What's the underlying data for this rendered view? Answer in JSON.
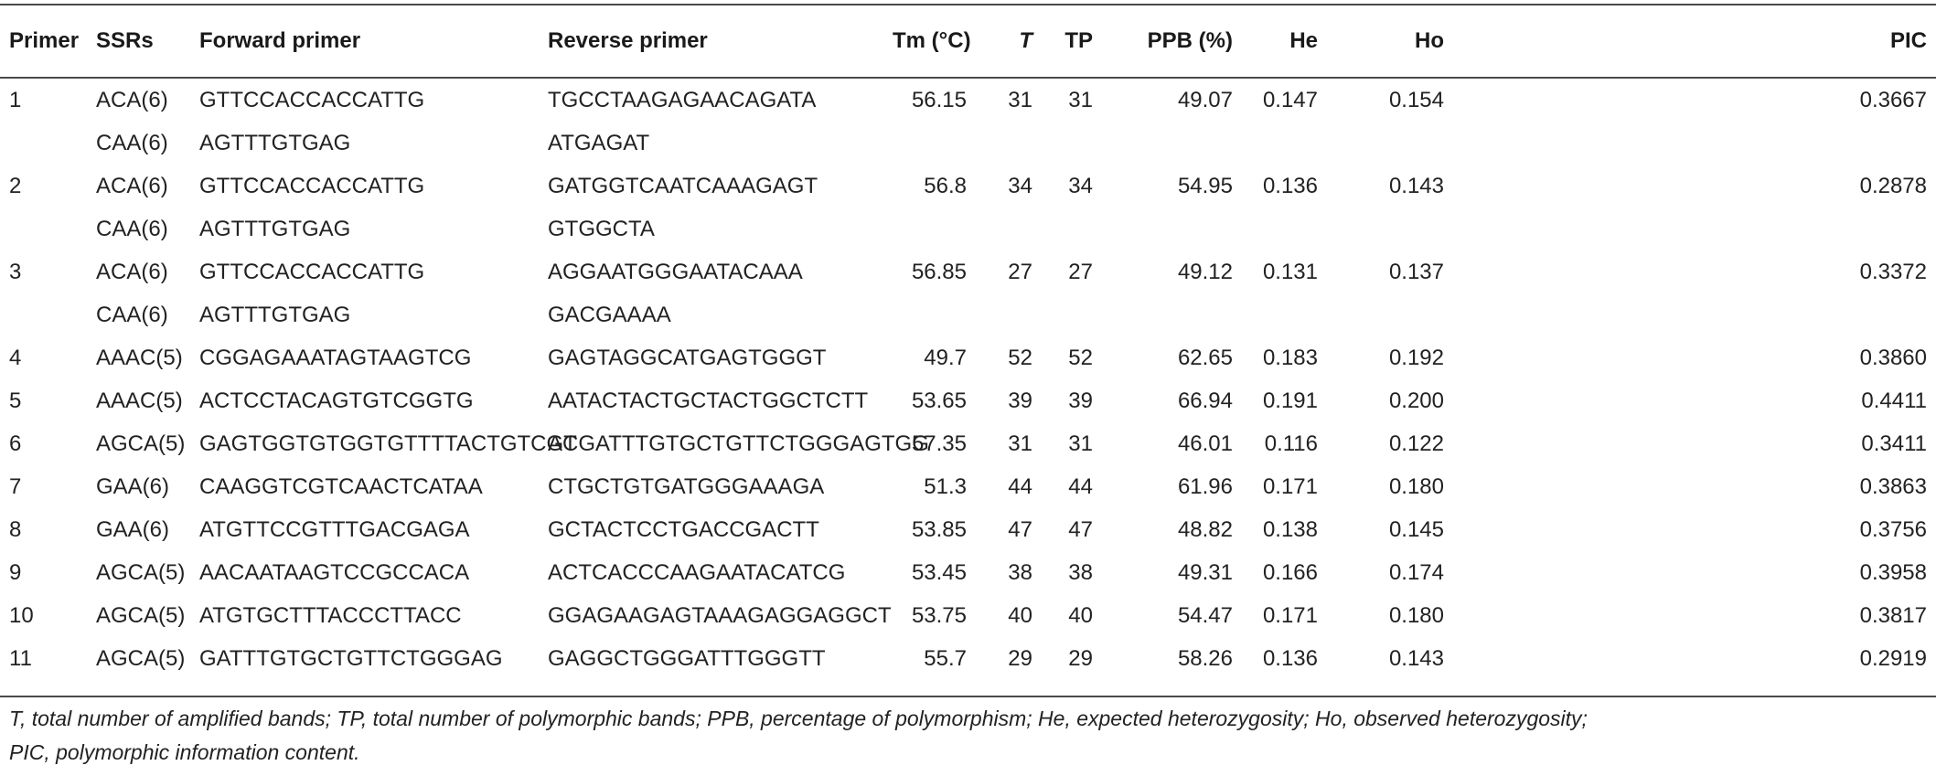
{
  "table": {
    "headers": {
      "primer": "Primer",
      "ssrs": "SSRs",
      "forward": "Forward primer",
      "reverse": "Reverse primer",
      "tm": "Tm (°C)",
      "t": "T",
      "tp": "TP",
      "ppb": "PPB (%)",
      "he": "He",
      "ho": "Ho",
      "pic": "PIC"
    },
    "rows": [
      {
        "primer": "1",
        "ssrs": "ACA(6)",
        "forward": "GTTCCACCACCATTG",
        "reverse": "TGCCTAAGAGAACAGATA",
        "tm": "56.15",
        "t": "31",
        "tp": "31",
        "ppb": "49.07",
        "he": "0.147",
        "ho": "0.154",
        "pic": "0.3667"
      },
      {
        "primer": "",
        "ssrs": "CAA(6)",
        "forward": "AGTTTGTGAG",
        "reverse": "ATGAGAT",
        "tm": "",
        "t": "",
        "tp": "",
        "ppb": "",
        "he": "",
        "ho": "",
        "pic": ""
      },
      {
        "primer": "2",
        "ssrs": "ACA(6)",
        "forward": "GTTCCACCACCATTG",
        "reverse": "GATGGTCAATCAAAGAGT",
        "tm": "56.8",
        "t": "34",
        "tp": "34",
        "ppb": "54.95",
        "he": "0.136",
        "ho": "0.143",
        "pic": "0.2878"
      },
      {
        "primer": "",
        "ssrs": "CAA(6)",
        "forward": "AGTTTGTGAG",
        "reverse": "GTGGCTA",
        "tm": "",
        "t": "",
        "tp": "",
        "ppb": "",
        "he": "",
        "ho": "",
        "pic": ""
      },
      {
        "primer": "3",
        "ssrs": "ACA(6)",
        "forward": "GTTCCACCACCATTG",
        "reverse": "AGGAATGGGAATACAAA",
        "tm": "56.85",
        "t": "27",
        "tp": "27",
        "ppb": "49.12",
        "he": "0.131",
        "ho": "0.137",
        "pic": "0.3372"
      },
      {
        "primer": "",
        "ssrs": "CAA(6)",
        "forward": "AGTTTGTGAG",
        "reverse": "GACGAAAA",
        "tm": "",
        "t": "",
        "tp": "",
        "ppb": "",
        "he": "",
        "ho": "",
        "pic": ""
      },
      {
        "primer": "4",
        "ssrs": "AAAC(5)",
        "forward": "CGGAGAAATAGTAAGTCG",
        "reverse": "GAGTAGGCATGAGTGGGT",
        "tm": "49.7",
        "t": "52",
        "tp": "52",
        "ppb": "62.65",
        "he": "0.183",
        "ho": "0.192",
        "pic": "0.3860"
      },
      {
        "primer": "5",
        "ssrs": "AAAC(5)",
        "forward": "ACTCCTACAGTGTCGGTG",
        "reverse": "AATACTACTGCTACTGGCTCTT",
        "tm": "53.65",
        "t": "39",
        "tp": "39",
        "ppb": "66.94",
        "he": "0.191",
        "ho": "0.200",
        "pic": "0.4411"
      },
      {
        "primer": "6",
        "ssrs": "AGCA(5)",
        "forward": "GAGTGGTGTGGTGTTTTACTGTCGT",
        "reverse": "ACGATTTGTGCTGTTCTGGGAGTGG",
        "tm": "57.35",
        "t": "31",
        "tp": "31",
        "ppb": "46.01",
        "he": "0.116",
        "ho": "0.122",
        "pic": "0.3411"
      },
      {
        "primer": "7",
        "ssrs": "GAA(6)",
        "forward": "CAAGGTCGTCAACTCATAA",
        "reverse": "CTGCTGTGATGGGAAAGA",
        "tm": "51.3",
        "t": "44",
        "tp": "44",
        "ppb": "61.96",
        "he": "0.171",
        "ho": "0.180",
        "pic": "0.3863"
      },
      {
        "primer": "8",
        "ssrs": "GAA(6)",
        "forward": "ATGTTCCGTTTGACGAGA",
        "reverse": "GCTACTCCTGACCGACTT",
        "tm": "53.85",
        "t": "47",
        "tp": "47",
        "ppb": "48.82",
        "he": "0.138",
        "ho": "0.145",
        "pic": "0.3756"
      },
      {
        "primer": "9",
        "ssrs": "AGCA(5)",
        "forward": "AACAATAAGTCCGCCACA",
        "reverse": "ACTCACCCAAGAATACATCG",
        "tm": "53.45",
        "t": "38",
        "tp": "38",
        "ppb": "49.31",
        "he": "0.166",
        "ho": "0.174",
        "pic": "0.3958"
      },
      {
        "primer": "10",
        "ssrs": "AGCA(5)",
        "forward": "ATGTGCTTTACCCTTACC",
        "reverse": "GGAGAAGAGTAAAGAGGAGGCT",
        "tm": "53.75",
        "t": "40",
        "tp": "40",
        "ppb": "54.47",
        "he": "0.171",
        "ho": "0.180",
        "pic": "0.3817"
      },
      {
        "primer": "11",
        "ssrs": "AGCA(5)",
        "forward": "GATTTGTGCTGTTCTGGGAG",
        "reverse": "GAGGCTGGGATTTGGGTT",
        "tm": "55.7",
        "t": "29",
        "tp": "29",
        "ppb": "58.26",
        "he": "0.136",
        "ho": "0.143",
        "pic": "0.2919"
      }
    ]
  },
  "footnote": {
    "line1": "T, total number of amplified bands; TP, total number of polymorphic bands; PPB, percentage of polymorphism; He, expected heterozygosity; Ho, observed heterozygosity;",
    "line2": "PIC, polymorphic information content."
  }
}
